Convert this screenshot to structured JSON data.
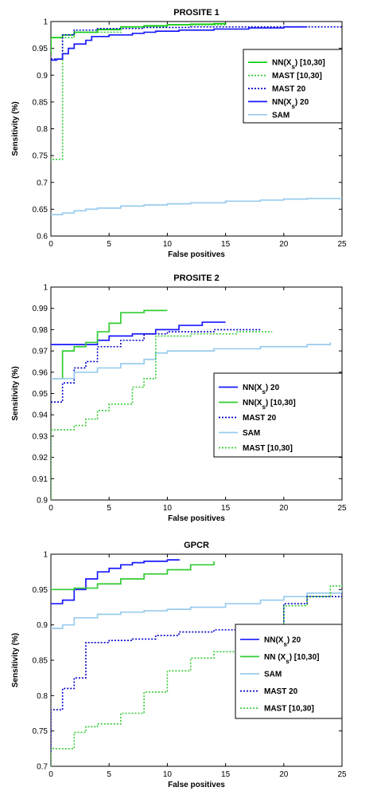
{
  "chart_data": [
    {
      "type": "line",
      "title": "PROSITE 1",
      "xlabel": "False positives",
      "ylabel": "Sensitivity (%)",
      "xlim": [
        0,
        25
      ],
      "ylim": [
        0.6,
        1
      ],
      "xticks": [
        "0",
        "5",
        "10",
        "15",
        "20",
        "25"
      ],
      "yticks": [
        "0.6",
        "0.65",
        "0.7",
        "0.75",
        "0.8",
        "0.85",
        "0.9",
        "0.95",
        "1"
      ],
      "legend_position": "top-right",
      "series": [
        {
          "name": "NN(X_s) [10,30]",
          "color": "#00cc00",
          "style": "solid",
          "x": [
            0,
            0,
            0.5,
            1,
            2,
            4,
            6,
            8,
            10,
            12,
            14,
            15
          ],
          "y": [
            0.94,
            0.97,
            0.97,
            0.975,
            0.98,
            0.985,
            0.99,
            0.992,
            0.994,
            0.995,
            0.996,
            0.997
          ]
        },
        {
          "name": "MAST [10,30]",
          "color": "#33cc33",
          "style": "dotted",
          "x": [
            0,
            0,
            1,
            1,
            2,
            6,
            10,
            15
          ],
          "y": [
            0.74,
            0.743,
            0.743,
            0.97,
            0.98,
            0.99,
            0.994,
            0.997
          ]
        },
        {
          "name": "MAST 20",
          "color": "#0000cc",
          "style": "dotted",
          "x": [
            0,
            1,
            1,
            2,
            2,
            4,
            8,
            12,
            20,
            25
          ],
          "y": [
            0.93,
            0.935,
            0.975,
            0.975,
            0.984,
            0.987,
            0.989,
            0.99,
            0.99,
            0.99
          ]
        },
        {
          "name": "NN(X_s) 20",
          "color": "#1a1aff",
          "style": "solid",
          "x": [
            0,
            0.5,
            1,
            1.5,
            2,
            3,
            3.5,
            5,
            7,
            8,
            9,
            11,
            14,
            17,
            20,
            22
          ],
          "y": [
            0.928,
            0.93,
            0.94,
            0.95,
            0.958,
            0.965,
            0.972,
            0.975,
            0.978,
            0.98,
            0.982,
            0.984,
            0.986,
            0.988,
            0.99,
            0.99
          ]
        },
        {
          "name": "SAM",
          "color": "#99ccee",
          "style": "solid",
          "x": [
            0,
            1,
            2,
            3,
            4,
            6,
            8,
            10,
            12,
            15,
            18,
            20,
            22,
            25
          ],
          "y": [
            0.64,
            0.643,
            0.647,
            0.65,
            0.652,
            0.656,
            0.658,
            0.66,
            0.662,
            0.665,
            0.667,
            0.669,
            0.67,
            0.672
          ]
        }
      ],
      "legend_order": [
        0,
        1,
        2,
        3,
        4
      ]
    },
    {
      "type": "line",
      "title": "PROSITE 2",
      "xlabel": "False positives",
      "ylabel": "Sensitivity (%)",
      "xlim": [
        0,
        25
      ],
      "ylim": [
        0.9,
        1
      ],
      "xticks": [
        "0",
        "5",
        "10",
        "15",
        "20",
        "25"
      ],
      "yticks": [
        "0.9",
        "0.91",
        "0.92",
        "0.93",
        "0.94",
        "0.95",
        "0.96",
        "0.97",
        "0.98",
        "0.99",
        "1"
      ],
      "legend_position": "center-right",
      "series": [
        {
          "name": "NN(X_s) 20",
          "color": "#1a1aff",
          "style": "solid",
          "x": [
            0,
            4,
            5,
            7,
            9,
            11,
            13,
            15
          ],
          "y": [
            0.973,
            0.975,
            0.977,
            0.978,
            0.98,
            0.982,
            0.9835,
            0.9835
          ]
        },
        {
          "name": "NN(X_s) [10,30]",
          "color": "#33cc33",
          "style": "solid",
          "x": [
            0,
            1,
            1,
            2,
            3,
            4,
            5,
            6,
            8,
            10
          ],
          "y": [
            0.957,
            0.957,
            0.97,
            0.972,
            0.974,
            0.979,
            0.983,
            0.988,
            0.989,
            0.989
          ]
        },
        {
          "name": "MAST 20",
          "color": "#0000cc",
          "style": "dotted",
          "x": [
            0,
            1,
            2,
            3,
            4,
            6,
            8,
            10,
            14,
            18
          ],
          "y": [
            0.946,
            0.955,
            0.962,
            0.965,
            0.972,
            0.975,
            0.978,
            0.979,
            0.98,
            0.98
          ]
        },
        {
          "name": "SAM",
          "color": "#99ccee",
          "style": "solid",
          "x": [
            0,
            2,
            4,
            6,
            8,
            9,
            10,
            14,
            18,
            22,
            24
          ],
          "y": [
            0.957,
            0.96,
            0.962,
            0.964,
            0.966,
            0.969,
            0.97,
            0.971,
            0.972,
            0.973,
            0.974
          ]
        },
        {
          "name": "MAST [10,30]",
          "color": "#33cc33",
          "style": "dotted",
          "x": [
            0,
            0,
            2,
            3,
            4,
            5,
            7,
            8,
            9,
            9,
            12,
            16,
            19
          ],
          "y": [
            0.9,
            0.933,
            0.935,
            0.938,
            0.942,
            0.945,
            0.953,
            0.957,
            0.96,
            0.977,
            0.978,
            0.979,
            0.979
          ]
        }
      ],
      "legend_order": [
        0,
        1,
        2,
        3,
        4
      ]
    },
    {
      "type": "line",
      "title": "GPCR",
      "xlabel": "False positives",
      "ylabel": "Sensitivity (%)",
      "xlim": [
        0,
        25
      ],
      "ylim": [
        0.7,
        1
      ],
      "xticks": [
        "0",
        "5",
        "10",
        "15",
        "20",
        "25"
      ],
      "yticks": [
        "0.7",
        "0.75",
        "0.8",
        "0.85",
        "0.9",
        "0.95",
        "1"
      ],
      "legend_position": "center-right",
      "series": [
        {
          "name": "NN(X_s) 20",
          "color": "#1a1aff",
          "style": "solid",
          "x": [
            0,
            1,
            2,
            3,
            4,
            5,
            6,
            7,
            8,
            9,
            10,
            11
          ],
          "y": [
            0.93,
            0.935,
            0.95,
            0.965,
            0.975,
            0.98,
            0.985,
            0.988,
            0.99,
            0.99,
            0.992,
            0.993
          ]
        },
        {
          "name": "NN (X_s) [10,30]",
          "color": "#33cc33",
          "style": "solid",
          "x": [
            0,
            2,
            4,
            6,
            8,
            10,
            12,
            14
          ],
          "y": [
            0.95,
            0.952,
            0.958,
            0.965,
            0.972,
            0.978,
            0.985,
            0.99
          ]
        },
        {
          "name": "SAM",
          "color": "#99ccee",
          "style": "solid",
          "x": [
            0,
            1,
            2,
            4,
            6,
            8,
            10,
            12,
            15,
            18,
            20,
            22,
            25
          ],
          "y": [
            0.895,
            0.9,
            0.91,
            0.915,
            0.918,
            0.92,
            0.922,
            0.925,
            0.93,
            0.935,
            0.94,
            0.945,
            0.95
          ]
        },
        {
          "name": "MAST 20",
          "color": "#0000cc",
          "style": "dotted",
          "x": [
            0,
            0,
            1,
            1,
            2,
            3,
            5,
            7,
            9,
            11,
            14,
            17,
            20,
            22,
            25
          ],
          "y": [
            0.72,
            0.78,
            0.78,
            0.81,
            0.825,
            0.875,
            0.878,
            0.88,
            0.885,
            0.89,
            0.893,
            0.897,
            0.93,
            0.94,
            0.945
          ]
        },
        {
          "name": "MAST [10,30]",
          "color": "#33cc33",
          "style": "dotted",
          "x": [
            0,
            0,
            2,
            3,
            4,
            6,
            8,
            10,
            12,
            14,
            16,
            18,
            20,
            22,
            24,
            25
          ],
          "y": [
            0.7,
            0.725,
            0.748,
            0.756,
            0.76,
            0.775,
            0.805,
            0.835,
            0.853,
            0.862,
            0.875,
            0.892,
            0.927,
            0.94,
            0.955,
            0.96
          ]
        }
      ],
      "legend_order": [
        0,
        1,
        2,
        3,
        4
      ]
    }
  ]
}
